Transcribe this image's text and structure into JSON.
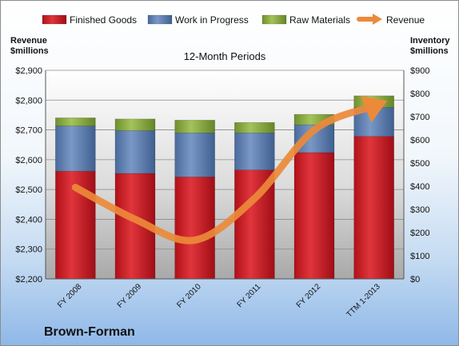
{
  "company": "Brown-Forman",
  "chart_data": {
    "type": "bar",
    "subtitle": "12-Month Periods",
    "categories": [
      "FY 2008",
      "FY 2009",
      "FY 2010",
      "FY 2011",
      "FY 2012",
      "TTM 1-2013"
    ],
    "left_axis": {
      "label_line1": "Revenue",
      "label_line2": "$millions",
      "range": [
        2200,
        2900
      ],
      "ticks": [
        "$2,200",
        "$2,300",
        "$2,400",
        "$2,500",
        "$2,600",
        "$2,700",
        "$2,800",
        "$2,900"
      ],
      "tick_values": [
        2200,
        2300,
        2400,
        2500,
        2600,
        2700,
        2800,
        2900
      ]
    },
    "right_axis": {
      "label_line1": "Inventory",
      "label_line2": "$millions",
      "range": [
        0,
        900
      ],
      "ticks": [
        "$0",
        "$100",
        "$200",
        "$300",
        "$400",
        "$500",
        "$600",
        "$700",
        "$800",
        "$900"
      ],
      "tick_values": [
        0,
        100,
        200,
        300,
        400,
        500,
        600,
        700,
        800,
        900
      ]
    },
    "bar_series": [
      {
        "name": "Finished Goods",
        "color": "#c0171f",
        "values": [
          465,
          455,
          440,
          470,
          545,
          615
        ]
      },
      {
        "name": "Work in Progress",
        "color": "#5677a9",
        "values": [
          195,
          185,
          190,
          160,
          120,
          125
        ]
      },
      {
        "name": "Raw Materials",
        "color": "#7f9e3b",
        "values": [
          35,
          50,
          55,
          45,
          45,
          50
        ]
      }
    ],
    "line_series": {
      "name": "Revenue",
      "color": "#ec8a3a",
      "values": [
        2507,
        2400,
        2330,
        2470,
        2700,
        2780
      ]
    },
    "legend_position": "top",
    "grid": true
  }
}
